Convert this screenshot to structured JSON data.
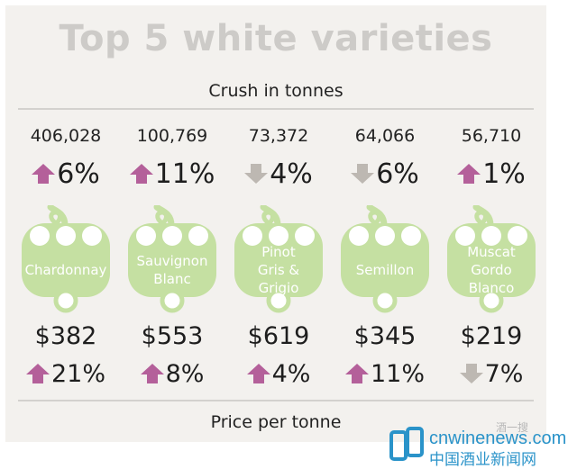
{
  "chart_data": {
    "type": "table",
    "title": "Top 5 white varieties",
    "crush_label": "Crush in tonnes",
    "price_label": "Price per tonne",
    "categories": [
      "Chardonnay",
      "Sauvignon Blanc",
      "Pinot Gris & Grigio",
      "Semillon",
      "Muscat Gordo Blanco"
    ],
    "varieties": [
      {
        "name": "Chardonnay",
        "label_lines": [
          "Chardonnay"
        ],
        "crush_text": "406,028",
        "crush_tonnes": 406028,
        "crush_change_text": "6%",
        "crush_change": 6,
        "crush_dir": "up",
        "price_text": "$382",
        "price": 382,
        "price_change_text": "21%",
        "price_change": 21,
        "price_dir": "up"
      },
      {
        "name": "Sauvignon Blanc",
        "label_lines": [
          "Sauvignon",
          "Blanc"
        ],
        "crush_text": "100,769",
        "crush_tonnes": 100769,
        "crush_change_text": "11%",
        "crush_change": 11,
        "crush_dir": "up",
        "price_text": "$553",
        "price": 553,
        "price_change_text": "8%",
        "price_change": 8,
        "price_dir": "up"
      },
      {
        "name": "Pinot Gris & Grigio",
        "label_lines": [
          "Pinot",
          "Gris &",
          "Grigio"
        ],
        "crush_text": "73,372",
        "crush_tonnes": 73372,
        "crush_change_text": "4%",
        "crush_change": -4,
        "crush_dir": "down",
        "price_text": "$619",
        "price": 619,
        "price_change_text": "4%",
        "price_change": 4,
        "price_dir": "up"
      },
      {
        "name": "Semillon",
        "label_lines": [
          "Semillon"
        ],
        "crush_text": "64,066",
        "crush_tonnes": 64066,
        "crush_change_text": "6%",
        "crush_change": -6,
        "crush_dir": "down",
        "price_text": "$345",
        "price": 345,
        "price_change_text": "11%",
        "price_change": 11,
        "price_dir": "up"
      },
      {
        "name": "Muscat Gordo Blanco",
        "label_lines": [
          "Muscat",
          "Gordo",
          "Blanco"
        ],
        "crush_text": "56,710",
        "crush_tonnes": 56710,
        "crush_change_text": "1%",
        "crush_change": 1,
        "crush_dir": "up",
        "price_text": "$219",
        "price": 219,
        "price_change_text": "7%",
        "price_change": -7,
        "price_dir": "down"
      }
    ]
  },
  "colors": {
    "panel": "#f3f1ee",
    "title": "#cdcbc8",
    "grape": "#c5e0a2",
    "grape_white": "#ffffff",
    "arrow_up": "#b4609a",
    "arrow_down": "#bdb8b2",
    "rule": "#d3d1ce"
  },
  "watermark": {
    "site": "cnwinenews.com",
    "chinese": "中国酒业新闻网",
    "small": "酒一搜"
  }
}
